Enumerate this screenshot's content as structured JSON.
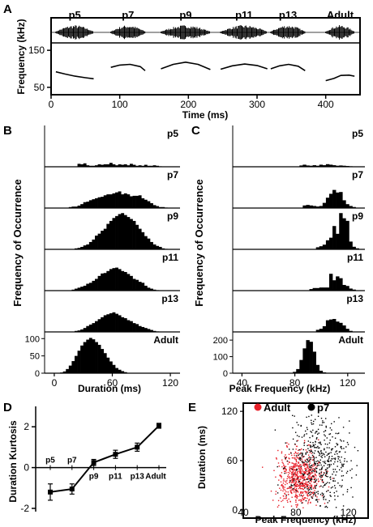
{
  "chart_data": [
    {
      "panel": "A",
      "type": "line",
      "title": "",
      "xlabel": "Time (ms)",
      "ylabel": "Frequency (kHz)",
      "xlim": [
        0,
        450
      ],
      "ylim": [
        30,
        170
      ],
      "xticks": [
        0,
        100,
        200,
        300,
        400
      ],
      "yticks": [
        50,
        150
      ],
      "segment_labels": [
        "p5",
        "p7",
        "p9",
        "p11",
        "p13",
        "Adult"
      ],
      "segments": [
        {
          "name": "p5",
          "x": [
            7,
            20,
            35,
            50,
            62
          ],
          "y": [
            92,
            86,
            80,
            76,
            73
          ]
        },
        {
          "name": "p7",
          "x": [
            87,
            100,
            115,
            130,
            137
          ],
          "y": [
            104,
            110,
            112,
            106,
            95
          ]
        },
        {
          "name": "p9",
          "x": [
            160,
            178,
            196,
            214,
            232
          ],
          "y": [
            100,
            112,
            118,
            112,
            98
          ]
        },
        {
          "name": "p11",
          "x": [
            247,
            264,
            282,
            300,
            315
          ],
          "y": [
            99,
            108,
            113,
            109,
            100
          ]
        },
        {
          "name": "p13",
          "x": [
            320,
            333,
            346,
            360,
            370
          ],
          "y": [
            100,
            108,
            112,
            107,
            95
          ]
        },
        {
          "name": "Adult",
          "x": [
            400,
            412,
            422,
            434,
            442
          ],
          "y": [
            68,
            74,
            82,
            83,
            80
          ]
        }
      ]
    },
    {
      "panel": "B",
      "type": "bar",
      "xlabel": "Duration (ms)",
      "ylabel": "Frequency of Occurrence",
      "xlim": [
        -10,
        130
      ],
      "xticks": [
        0,
        60,
        120
      ],
      "bin_start": 0,
      "bin_width": 3,
      "adult_ylim": [
        0,
        110
      ],
      "adult_yticks": [
        0,
        50,
        100
      ],
      "series": [
        {
          "name": "p5",
          "values": [
            0,
            0,
            0,
            0,
            0,
            0,
            0,
            0,
            6,
            5,
            7,
            3,
            2,
            2,
            3,
            5,
            4,
            5,
            5,
            8,
            5,
            3,
            5,
            4,
            5,
            3,
            6,
            4,
            2,
            3,
            2,
            4,
            2,
            2,
            3,
            2,
            1,
            0,
            0,
            0,
            0
          ]
        },
        {
          "name": "p7",
          "values": [
            0,
            0,
            0,
            0,
            0,
            2,
            3,
            3,
            5,
            8,
            12,
            13,
            16,
            18,
            20,
            22,
            23,
            26,
            28,
            28,
            30,
            32,
            34,
            28,
            30,
            28,
            24,
            25,
            25,
            26,
            20,
            17,
            14,
            10,
            6,
            4,
            2,
            2,
            1,
            0,
            0
          ]
        },
        {
          "name": "p9",
          "values": [
            0,
            0,
            0,
            0,
            0,
            0,
            0,
            2,
            3,
            5,
            8,
            10,
            15,
            20,
            28,
            32,
            38,
            42,
            52,
            58,
            64,
            68,
            72,
            74,
            70,
            66,
            62,
            58,
            50,
            42,
            35,
            27,
            22,
            15,
            10,
            7,
            5,
            2,
            1,
            0,
            0
          ]
        },
        {
          "name": "p11",
          "values": [
            0,
            0,
            0,
            0,
            0,
            0,
            2,
            4,
            6,
            8,
            10,
            14,
            16,
            20,
            24,
            30,
            35,
            36,
            40,
            44,
            46,
            47,
            44,
            40,
            38,
            34,
            30,
            24,
            22,
            18,
            16,
            10,
            6,
            4,
            2,
            1,
            0,
            0,
            0,
            0,
            0
          ]
        },
        {
          "name": "p13",
          "values": [
            0,
            0,
            0,
            0,
            0,
            0,
            0,
            2,
            3,
            5,
            8,
            12,
            15,
            18,
            22,
            26,
            30,
            34,
            36,
            38,
            40,
            37,
            34,
            30,
            28,
            24,
            22,
            18,
            16,
            12,
            10,
            8,
            6,
            4,
            2,
            1,
            0,
            0,
            0,
            0,
            0
          ]
        },
        {
          "name": "Adult",
          "values": [
            0,
            0,
            2,
            5,
            12,
            22,
            35,
            50,
            65,
            80,
            90,
            97,
            102,
            98,
            90,
            82,
            70,
            58,
            45,
            34,
            24,
            15,
            10,
            6,
            3,
            1,
            0,
            0,
            0,
            0,
            0,
            0,
            0,
            0,
            0,
            0,
            0,
            0,
            0,
            0,
            0
          ]
        }
      ]
    },
    {
      "panel": "C",
      "type": "bar",
      "xlabel": "Peak Frequency (kHz)",
      "ylabel": "Frequency of Occurrence",
      "xlim": [
        33,
        133
      ],
      "xticks": [
        40,
        80,
        120
      ],
      "bin_start": 36,
      "bin_width": 2.5,
      "adult_ylim": [
        0,
        230
      ],
      "adult_yticks": [
        0,
        100,
        200
      ],
      "series": [
        {
          "name": "p5",
          "values": [
            0,
            0,
            0,
            0,
            0,
            0,
            0,
            0,
            0,
            0,
            0,
            0,
            0,
            0,
            0,
            0,
            0,
            0,
            0,
            5,
            8,
            5,
            4,
            6,
            4,
            8,
            6,
            10,
            8,
            6,
            4,
            5,
            4,
            3,
            2,
            0,
            0,
            0,
            0,
            0
          ]
        },
        {
          "name": "p7",
          "values": [
            0,
            0,
            0,
            0,
            0,
            0,
            0,
            0,
            0,
            0,
            0,
            0,
            0,
            0,
            0,
            0,
            0,
            0,
            0,
            0,
            10,
            12,
            10,
            8,
            6,
            8,
            20,
            40,
            55,
            70,
            60,
            62,
            30,
            15,
            8,
            4,
            0,
            0,
            0,
            0
          ]
        },
        {
          "name": "p9",
          "values": [
            0,
            0,
            0,
            0,
            0,
            0,
            0,
            0,
            0,
            0,
            0,
            0,
            0,
            0,
            0,
            0,
            0,
            0,
            0,
            0,
            0,
            0,
            0,
            0,
            8,
            12,
            18,
            35,
            45,
            90,
            60,
            140,
            120,
            110,
            30,
            10,
            4,
            0,
            0,
            0
          ]
        },
        {
          "name": "p11",
          "values": [
            0,
            0,
            0,
            0,
            0,
            0,
            0,
            0,
            0,
            0,
            0,
            0,
            0,
            0,
            0,
            0,
            0,
            0,
            0,
            0,
            0,
            0,
            6,
            10,
            10,
            12,
            12,
            12,
            65,
            40,
            55,
            48,
            22,
            18,
            8,
            4,
            0,
            0,
            0,
            0
          ]
        },
        {
          "name": "p13",
          "values": [
            0,
            0,
            0,
            0,
            0,
            0,
            0,
            0,
            0,
            0,
            0,
            0,
            0,
            0,
            0,
            0,
            0,
            0,
            0,
            0,
            0,
            0,
            0,
            0,
            8,
            12,
            22,
            45,
            48,
            50,
            40,
            35,
            25,
            12,
            4,
            0,
            0,
            0,
            0,
            0
          ]
        },
        {
          "name": "Adult",
          "values": [
            0,
            0,
            0,
            0,
            0,
            0,
            0,
            0,
            0,
            0,
            0,
            0,
            0,
            0,
            0,
            0,
            0,
            8,
            25,
            80,
            150,
            200,
            190,
            130,
            50,
            15,
            5,
            0,
            0,
            0,
            0,
            0,
            0,
            0,
            0,
            0
          ]
        }
      ]
    },
    {
      "panel": "D",
      "type": "line",
      "xlabel": "",
      "ylabel": "Duration Kurtosis",
      "categories": [
        "p5",
        "p7",
        "p9",
        "p11",
        "p13",
        "Adult"
      ],
      "values": [
        -1.2,
        -1.05,
        0.25,
        0.65,
        1.0,
        2.05
      ],
      "errors": [
        0.4,
        0.25,
        0.15,
        0.2,
        0.2,
        0.12
      ],
      "ylim": [
        -2,
        3
      ],
      "yticks": [
        -2,
        0,
        2
      ]
    },
    {
      "panel": "E",
      "type": "scatter",
      "xlabel": "Peak Frequency (kHz)",
      "ylabel": "Duration (ms)",
      "xlim": [
        40,
        135
      ],
      "ylim": [
        -10,
        130
      ],
      "xticks": [
        40,
        80,
        120
      ],
      "yticks": [
        0,
        60,
        120
      ],
      "legend_position": "top-left",
      "series": [
        {
          "name": "Adult",
          "color": "#e8202a",
          "center": [
            82,
            40
          ],
          "spread": [
            8,
            18
          ],
          "count": 650
        },
        {
          "name": "p7",
          "color": "#000000",
          "center": [
            98,
            55
          ],
          "spread": [
            12,
            30
          ],
          "count": 500
        }
      ]
    }
  ],
  "panel_letters": {
    "A": "A",
    "B": "B",
    "C": "C",
    "D": "D",
    "E": "E"
  }
}
